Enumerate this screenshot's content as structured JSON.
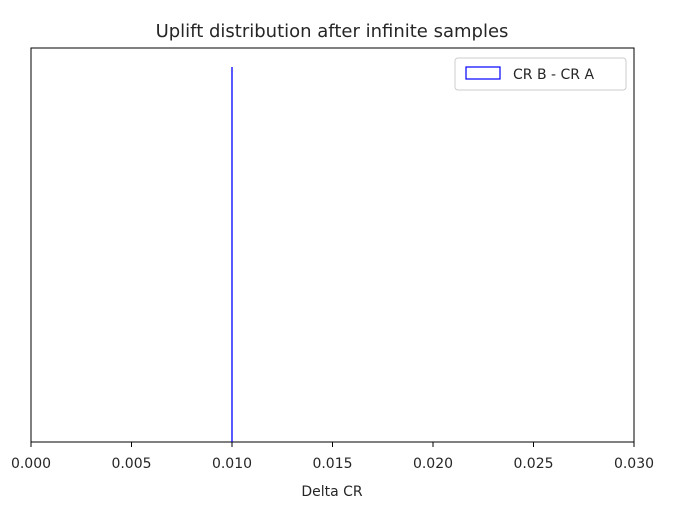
{
  "chart_data": {
    "type": "histogram",
    "title": "Uplift distribution after infinite samples",
    "xlabel": "Delta CR",
    "ylabel": "",
    "xlim": [
      0.0,
      0.03
    ],
    "x_ticks": [
      "0.000",
      "0.005",
      "0.010",
      "0.015",
      "0.020",
      "0.025",
      "0.030"
    ],
    "x_tick_values": [
      0.0,
      0.005,
      0.01,
      0.015,
      0.02,
      0.025,
      0.03
    ],
    "y_ticks_visible": false,
    "grid": false,
    "legend_placement": "top-right",
    "series": [
      {
        "name": "CR B - CR A",
        "color": "#0000ff",
        "style": "step-outline",
        "values": [
          0.01
        ],
        "relative_height": 1.0
      }
    ]
  }
}
